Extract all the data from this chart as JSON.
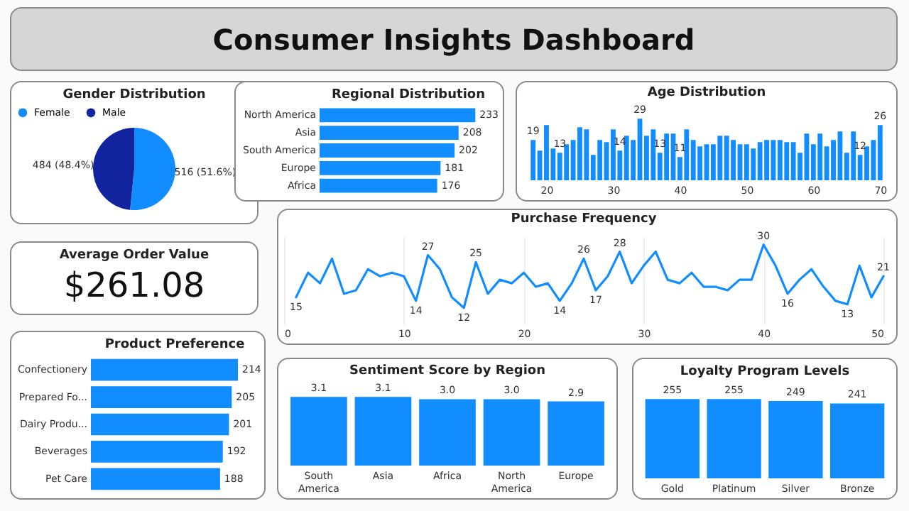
{
  "chart_data": [
    {
      "type": "other",
      "title": "Consumer Insights Dashboard"
    },
    {
      "type": "pie",
      "title": "Gender Distribution",
      "categories": [
        "Female",
        "Male"
      ],
      "values": [
        516,
        484
      ],
      "colors": [
        "#118dff",
        "#12239e"
      ],
      "value_labels": [
        "516 (51.6%)",
        "484 (48.4%)"
      ],
      "legend": "top"
    },
    {
      "type": "bar",
      "title": "Regional Distribution",
      "orientation": "horizontal",
      "categories": [
        "North America",
        "Asia",
        "South America",
        "Europe",
        "Africa"
      ],
      "values": [
        233,
        208,
        202,
        181,
        176
      ],
      "color": "#118dff",
      "data_labels": true,
      "tick_labels": "y"
    },
    {
      "type": "bar",
      "title": "Age Distribution",
      "x": [
        18,
        19,
        20,
        21,
        22,
        23,
        24,
        25,
        26,
        27,
        28,
        29,
        30,
        31,
        32,
        33,
        34,
        35,
        36,
        37,
        38,
        39,
        40,
        41,
        42,
        43,
        44,
        45,
        46,
        47,
        48,
        49,
        50,
        51,
        52,
        53,
        54,
        55,
        56,
        57,
        58,
        59,
        60,
        61,
        62,
        63,
        64,
        65,
        66,
        67,
        68,
        69,
        70
      ],
      "values": [
        19,
        14,
        26,
        15,
        13,
        17,
        19,
        25,
        24,
        12,
        19,
        18,
        24,
        14,
        21,
        19,
        29,
        21,
        24,
        13,
        22,
        22,
        11,
        24,
        19,
        16,
        17,
        17,
        21,
        21,
        19,
        17,
        17,
        15,
        18,
        19,
        19,
        19,
        18,
        18,
        13,
        22,
        17,
        22,
        16,
        19,
        23,
        13,
        23,
        12,
        16,
        19,
        26
      ],
      "value_labels": [
        "19",
        null,
        null,
        null,
        "13",
        null,
        null,
        null,
        null,
        null,
        null,
        null,
        null,
        "14",
        null,
        null,
        "29",
        null,
        null,
        "13",
        null,
        null,
        "11",
        null,
        null,
        null,
        null,
        null,
        null,
        null,
        null,
        null,
        null,
        null,
        null,
        null,
        null,
        null,
        null,
        null,
        null,
        null,
        null,
        null,
        null,
        null,
        null,
        null,
        null,
        "12",
        null,
        null,
        "26"
      ],
      "color": "#118dff",
      "xlim": [
        17.5,
        70.5
      ],
      "xticks": [
        20,
        30,
        40,
        50,
        60,
        70
      ],
      "tick_labels": "x"
    },
    {
      "type": "other",
      "title": "Average Order Value",
      "annotations": [
        "$261.08"
      ]
    },
    {
      "type": "line",
      "title": "Purchase Frequency",
      "x": [
        1,
        2,
        3,
        4,
        5,
        6,
        7,
        8,
        9,
        10,
        11,
        12,
        13,
        14,
        15,
        16,
        17,
        18,
        19,
        20,
        21,
        22,
        23,
        24,
        25,
        26,
        27,
        28,
        29,
        30,
        31,
        32,
        33,
        34,
        35,
        36,
        37,
        38,
        39,
        40,
        41,
        42,
        43,
        44,
        45,
        46,
        47,
        48,
        49,
        50
      ],
      "values": [
        15,
        22,
        19,
        26,
        16,
        17,
        23,
        21,
        22,
        21,
        14,
        27,
        23,
        15,
        12,
        25,
        16,
        20,
        19,
        22,
        18,
        19,
        14,
        19,
        26,
        17,
        21,
        28,
        19,
        24,
        28,
        20,
        19,
        22,
        18,
        18,
        17,
        20,
        20,
        30,
        24,
        16,
        20,
        23,
        18,
        14,
        13,
        24,
        15,
        21
      ],
      "value_labels": [
        "15",
        null,
        null,
        null,
        null,
        null,
        null,
        null,
        null,
        null,
        "14",
        "27",
        null,
        null,
        "12",
        "25",
        null,
        null,
        null,
        null,
        null,
        null,
        "14",
        null,
        "26",
        "17",
        null,
        "28",
        null,
        null,
        null,
        null,
        null,
        null,
        null,
        null,
        null,
        null,
        null,
        "30",
        null,
        "16",
        null,
        null,
        null,
        null,
        "13",
        null,
        null,
        "21"
      ],
      "color": "#118dff",
      "xlim": [
        0,
        50
      ],
      "xticks": [
        0,
        10,
        20,
        30,
        40,
        50
      ],
      "grid": "x",
      "tick_labels": "x"
    },
    {
      "type": "bar",
      "title": "Product Preference",
      "orientation": "horizontal",
      "categories": [
        "Confectionery",
        "Prepared Fo...",
        "Dairy Produ...",
        "Beverages",
        "Pet Care"
      ],
      "values": [
        214,
        205,
        201,
        192,
        188
      ],
      "color": "#118dff",
      "data_labels": true,
      "tick_labels": "y"
    },
    {
      "type": "bar",
      "title": "Sentiment Score by Region",
      "categories": [
        "South America",
        "Asia",
        "Africa",
        "North America",
        "Europe"
      ],
      "values": [
        3.1,
        3.1,
        3.0,
        3.0,
        2.9
      ],
      "value_labels": [
        "3.1",
        "3.1",
        "3.0",
        "3.0",
        "2.9"
      ],
      "color": "#118dff",
      "tick_labels": "x"
    },
    {
      "type": "bar",
      "title": "Loyalty Program Levels",
      "categories": [
        "Gold",
        "Platinum",
        "Silver",
        "Bronze"
      ],
      "values": [
        255,
        255,
        249,
        241
      ],
      "color": "#118dff",
      "data_labels": true,
      "tick_labels": "x"
    }
  ]
}
